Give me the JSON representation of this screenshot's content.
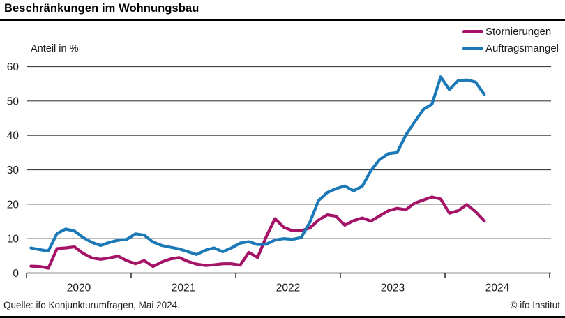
{
  "header": {
    "title": "Beschränkungen im Wohnungsbau"
  },
  "footer": {
    "source": "Quelle: ifo Konjunkturumfragen, Mai 2024.",
    "copyright": "© ifo Institut"
  },
  "chart_data": {
    "type": "line",
    "title": "Beschränkungen im Wohnungsbau",
    "ylabel": "Anteil in %",
    "ylim": [
      0,
      60
    ],
    "yticks": [
      0,
      10,
      20,
      30,
      40,
      50,
      60
    ],
    "grid": "horizontal",
    "legend_position": "top-right",
    "x_frequency": "monthly",
    "x_start": "2020-01",
    "x_end": "2024-05",
    "year_tick_labels": [
      "2020",
      "2021",
      "2022",
      "2023",
      "2024"
    ],
    "series": [
      {
        "name": "Stornierungen",
        "color": "#a41368",
        "values": [
          2.0,
          1.9,
          1.4,
          7.1,
          7.3,
          7.6,
          5.7,
          4.4,
          4.0,
          4.4,
          4.9,
          3.6,
          2.7,
          3.6,
          1.9,
          3.2,
          4.1,
          4.5,
          3.4,
          2.6,
          2.2,
          2.4,
          2.7,
          2.7,
          2.3,
          6.0,
          4.5,
          10.6,
          15.8,
          13.3,
          12.3,
          12.3,
          13.1,
          15.4,
          16.9,
          16.5,
          13.9,
          15.2,
          16.0,
          15.1,
          16.6,
          18.1,
          18.8,
          18.4,
          20.3,
          21.2,
          22.1,
          21.5,
          17.4,
          18.1,
          19.9,
          17.8,
          15.1
        ]
      },
      {
        "name": "Auftragsmangel",
        "color": "#1b79b7",
        "values": [
          7.3,
          6.8,
          6.4,
          11.5,
          12.8,
          12.2,
          10.3,
          8.9,
          8.0,
          8.9,
          9.5,
          9.8,
          11.4,
          11.0,
          9.0,
          8.0,
          7.5,
          7.0,
          6.2,
          5.4,
          6.6,
          7.3,
          6.2,
          7.3,
          8.7,
          9.1,
          8.3,
          8.4,
          9.6,
          10.0,
          9.8,
          10.3,
          14.8,
          21.1,
          23.4,
          24.5,
          25.3,
          23.9,
          25.2,
          29.8,
          33.0,
          34.7,
          35.0,
          40.1,
          43.9,
          47.5,
          49.1,
          57.0,
          53.3,
          55.9,
          56.1,
          55.5,
          51.9
        ]
      }
    ],
    "axis_color": "#1a1a1a",
    "gridline_color": "#414141"
  }
}
